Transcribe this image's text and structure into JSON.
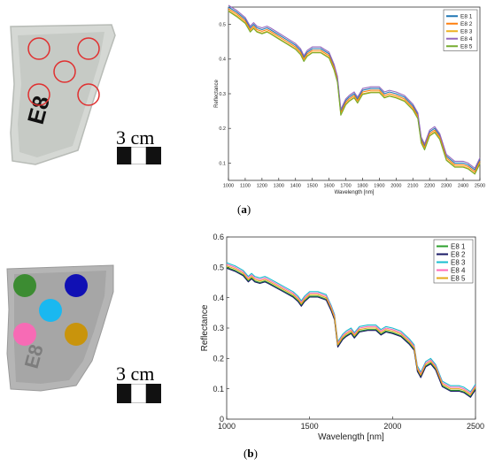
{
  "panels": {
    "a": {
      "label": "a",
      "scale_text": "3 cm",
      "sample_text": "E8",
      "legend": [
        "E8 1",
        "E8 2",
        "E8 3",
        "E8 4",
        "E8 5"
      ],
      "legend_colors": [
        "#1f77b4",
        "#ff7f0e",
        "#edb120",
        "#9467bd",
        "#77ac30"
      ]
    },
    "b": {
      "label": "b",
      "scale_text": "3 cm",
      "sample_text": "E8",
      "legend": [
        "E8 1",
        "E8 2",
        "E8 3",
        "E8 4",
        "E8 5"
      ],
      "legend_colors": [
        "#2ca02c",
        "#1a1a66",
        "#17becf",
        "#ff69b4",
        "#e6a817"
      ],
      "spot_colors": [
        "#3c8c32",
        "#1010b4",
        "#1ab8f0",
        "#f76bb5",
        "#c9940c"
      ]
    }
  },
  "chart_data": [
    {
      "type": "line",
      "xlabel": "Wavelength [nm]",
      "ylabel": "Reflectance",
      "xlim": [
        1000,
        2500
      ],
      "ylim": [
        0.05,
        0.55
      ],
      "xticks": [
        1000,
        1100,
        1200,
        1300,
        1400,
        1500,
        1600,
        1700,
        1800,
        1900,
        2000,
        2100,
        2200,
        2300,
        2400,
        2500
      ],
      "yticks": [
        0.1,
        0.2,
        0.3,
        0.4,
        0.5
      ],
      "legend_position": "top-right",
      "x": [
        1000,
        1050,
        1100,
        1130,
        1150,
        1170,
        1200,
        1230,
        1250,
        1300,
        1350,
        1400,
        1430,
        1450,
        1470,
        1500,
        1550,
        1600,
        1630,
        1650,
        1670,
        1700,
        1720,
        1750,
        1770,
        1800,
        1850,
        1900,
        1930,
        1960,
        2000,
        2050,
        2100,
        2130,
        2150,
        2170,
        2200,
        2230,
        2260,
        2300,
        2350,
        2400,
        2430,
        2470,
        2500
      ],
      "series": [
        {
          "name": "E8 1",
          "values": [
            0.55,
            0.535,
            0.515,
            0.49,
            0.5,
            0.49,
            0.485,
            0.49,
            0.485,
            0.47,
            0.455,
            0.44,
            0.425,
            0.405,
            0.42,
            0.43,
            0.43,
            0.415,
            0.38,
            0.345,
            0.25,
            0.28,
            0.29,
            0.3,
            0.285,
            0.31,
            0.315,
            0.315,
            0.3,
            0.305,
            0.3,
            0.29,
            0.265,
            0.24,
            0.17,
            0.15,
            0.19,
            0.2,
            0.18,
            0.12,
            0.1,
            0.1,
            0.095,
            0.08,
            0.11
          ]
        },
        {
          "name": "E8 2",
          "values": [
            0.545,
            0.53,
            0.51,
            0.485,
            0.495,
            0.485,
            0.48,
            0.485,
            0.48,
            0.465,
            0.45,
            0.435,
            0.42,
            0.4,
            0.415,
            0.425,
            0.425,
            0.41,
            0.375,
            0.34,
            0.245,
            0.275,
            0.285,
            0.295,
            0.28,
            0.305,
            0.31,
            0.31,
            0.295,
            0.3,
            0.295,
            0.285,
            0.26,
            0.235,
            0.165,
            0.145,
            0.185,
            0.195,
            0.175,
            0.115,
            0.095,
            0.095,
            0.09,
            0.075,
            0.105
          ]
        },
        {
          "name": "E8 3",
          "values": [
            0.54,
            0.525,
            0.505,
            0.48,
            0.49,
            0.48,
            0.475,
            0.48,
            0.475,
            0.46,
            0.445,
            0.43,
            0.415,
            0.395,
            0.41,
            0.42,
            0.42,
            0.405,
            0.37,
            0.335,
            0.24,
            0.27,
            0.28,
            0.29,
            0.275,
            0.3,
            0.305,
            0.305,
            0.29,
            0.295,
            0.29,
            0.28,
            0.255,
            0.23,
            0.16,
            0.14,
            0.18,
            0.19,
            0.17,
            0.11,
            0.09,
            0.09,
            0.085,
            0.07,
            0.1
          ]
        },
        {
          "name": "E8 4",
          "values": [
            0.555,
            0.54,
            0.52,
            0.495,
            0.505,
            0.495,
            0.49,
            0.495,
            0.49,
            0.475,
            0.46,
            0.445,
            0.43,
            0.41,
            0.425,
            0.435,
            0.435,
            0.42,
            0.385,
            0.35,
            0.255,
            0.285,
            0.295,
            0.305,
            0.29,
            0.315,
            0.32,
            0.32,
            0.305,
            0.31,
            0.305,
            0.295,
            0.27,
            0.245,
            0.175,
            0.155,
            0.195,
            0.205,
            0.185,
            0.125,
            0.105,
            0.105,
            0.1,
            0.085,
            0.115
          ]
        },
        {
          "name": "E8 5",
          "values": [
            0.538,
            0.522,
            0.503,
            0.478,
            0.488,
            0.478,
            0.473,
            0.478,
            0.473,
            0.458,
            0.443,
            0.428,
            0.413,
            0.393,
            0.408,
            0.418,
            0.418,
            0.403,
            0.368,
            0.333,
            0.238,
            0.268,
            0.278,
            0.288,
            0.273,
            0.298,
            0.303,
            0.303,
            0.288,
            0.293,
            0.288,
            0.278,
            0.253,
            0.228,
            0.158,
            0.138,
            0.178,
            0.188,
            0.168,
            0.108,
            0.088,
            0.088,
            0.083,
            0.068,
            0.098
          ]
        }
      ]
    },
    {
      "type": "line",
      "xlabel": "Wavelength [nm]",
      "ylabel": "Reflectance",
      "xlim": [
        1000,
        2500
      ],
      "ylim": [
        0,
        0.6
      ],
      "xticks": [
        1000,
        1500,
        2000,
        2500
      ],
      "yticks": [
        0,
        0.1,
        0.2,
        0.3,
        0.4,
        0.5,
        0.6
      ],
      "legend_position": "top-right",
      "x": [
        1000,
        1050,
        1100,
        1130,
        1150,
        1170,
        1200,
        1230,
        1250,
        1300,
        1350,
        1400,
        1430,
        1450,
        1470,
        1500,
        1550,
        1600,
        1630,
        1650,
        1670,
        1700,
        1720,
        1750,
        1770,
        1800,
        1850,
        1900,
        1930,
        1960,
        2000,
        2050,
        2100,
        2130,
        2150,
        2170,
        2200,
        2230,
        2260,
        2300,
        2350,
        2400,
        2430,
        2470,
        2500
      ],
      "series": [
        {
          "name": "E8 1",
          "values": [
            0.5,
            0.49,
            0.475,
            0.455,
            0.465,
            0.455,
            0.45,
            0.455,
            0.45,
            0.435,
            0.42,
            0.405,
            0.39,
            0.375,
            0.39,
            0.405,
            0.405,
            0.395,
            0.36,
            0.33,
            0.24,
            0.265,
            0.275,
            0.285,
            0.27,
            0.29,
            0.295,
            0.295,
            0.28,
            0.29,
            0.285,
            0.275,
            0.25,
            0.23,
            0.16,
            0.14,
            0.175,
            0.185,
            0.165,
            0.11,
            0.095,
            0.095,
            0.09,
            0.075,
            0.1
          ]
        },
        {
          "name": "E8 2",
          "values": [
            0.497,
            0.487,
            0.472,
            0.452,
            0.462,
            0.452,
            0.447,
            0.452,
            0.447,
            0.432,
            0.417,
            0.402,
            0.387,
            0.372,
            0.387,
            0.402,
            0.402,
            0.392,
            0.357,
            0.327,
            0.237,
            0.262,
            0.272,
            0.282,
            0.267,
            0.287,
            0.292,
            0.292,
            0.277,
            0.287,
            0.282,
            0.272,
            0.247,
            0.227,
            0.157,
            0.137,
            0.172,
            0.182,
            0.162,
            0.107,
            0.092,
            0.092,
            0.087,
            0.072,
            0.097
          ]
        },
        {
          "name": "E8 3",
          "values": [
            0.515,
            0.505,
            0.49,
            0.47,
            0.48,
            0.47,
            0.465,
            0.47,
            0.465,
            0.45,
            0.435,
            0.42,
            0.405,
            0.39,
            0.405,
            0.42,
            0.42,
            0.41,
            0.375,
            0.345,
            0.255,
            0.28,
            0.29,
            0.3,
            0.285,
            0.305,
            0.31,
            0.31,
            0.295,
            0.305,
            0.3,
            0.29,
            0.265,
            0.245,
            0.175,
            0.155,
            0.19,
            0.2,
            0.18,
            0.125,
            0.11,
            0.11,
            0.105,
            0.09,
            0.115
          ]
        },
        {
          "name": "E8 4",
          "values": [
            0.51,
            0.5,
            0.485,
            0.465,
            0.475,
            0.465,
            0.46,
            0.465,
            0.46,
            0.445,
            0.43,
            0.415,
            0.4,
            0.385,
            0.4,
            0.415,
            0.415,
            0.405,
            0.37,
            0.34,
            0.25,
            0.275,
            0.285,
            0.295,
            0.28,
            0.3,
            0.305,
            0.305,
            0.29,
            0.3,
            0.295,
            0.285,
            0.26,
            0.24,
            0.17,
            0.15,
            0.185,
            0.195,
            0.175,
            0.12,
            0.105,
            0.105,
            0.1,
            0.085,
            0.11
          ]
        },
        {
          "name": "E8 5",
          "values": [
            0.505,
            0.495,
            0.48,
            0.46,
            0.47,
            0.46,
            0.455,
            0.46,
            0.455,
            0.44,
            0.425,
            0.41,
            0.395,
            0.38,
            0.395,
            0.41,
            0.41,
            0.4,
            0.365,
            0.335,
            0.245,
            0.27,
            0.28,
            0.29,
            0.275,
            0.295,
            0.3,
            0.3,
            0.285,
            0.295,
            0.29,
            0.28,
            0.255,
            0.235,
            0.165,
            0.145,
            0.18,
            0.19,
            0.17,
            0.115,
            0.1,
            0.1,
            0.095,
            0.08,
            0.105
          ]
        }
      ]
    }
  ]
}
